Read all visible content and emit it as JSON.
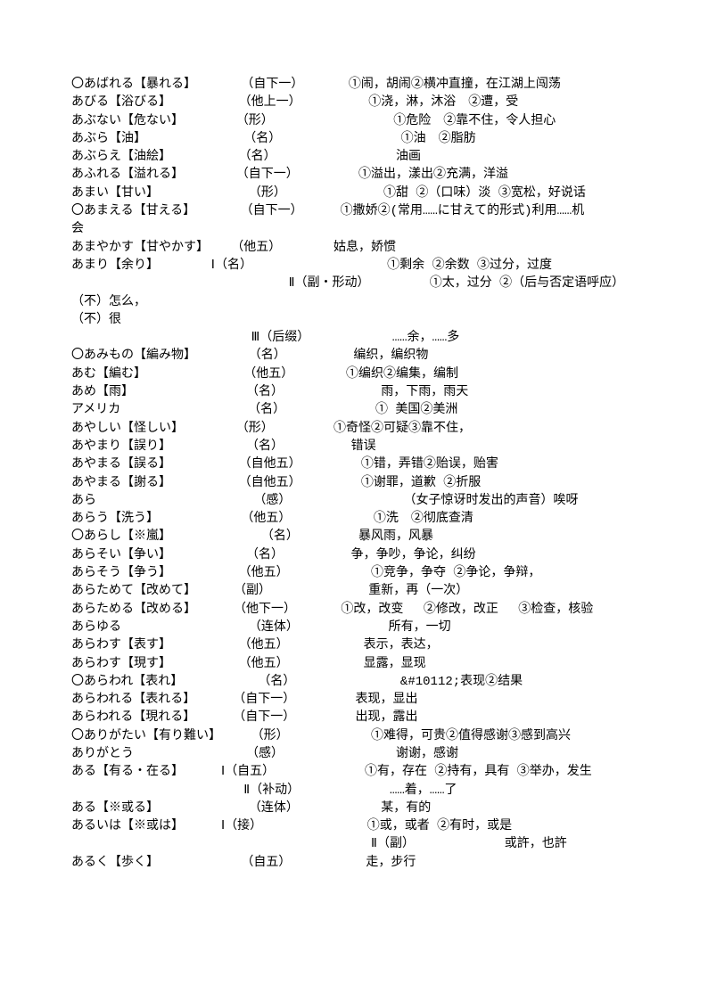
{
  "lines": [
    "〇あばれる【暴れる】      （自下一）      ①闹，胡闹②横冲直撞，在江湖上闯荡",
    "あびる【浴びる】         （他上一）         ①浇，淋，沐浴　②遭，受",
    "あぶない【危ない】       （形）                ①危险　②靠不住，令人担心",
    "あぶら【油】             （名）                ①油　②脂肪",
    "あぶらえ【油絵】         （名）                油画",
    "あふれる【溢れる】       （自下一）        ①溢出，漾出②充满，洋溢",
    "あまい【甘い】            （形）             ①甜 ②（口味）淡 ③宽松，好说话",
    "〇あまえる【甘える】      （自下一）     ①撒娇②(常用……に甘えて的形式)利用……机",
    "会",
    "あまやかす【甘やかす】   （他五）       姑息，娇惯",
    "あまり【余り】       Ⅰ（名）                  ①剩余 ②余数 ③过分，过度",
    "                             Ⅱ（副・形动）        ①太，过分 ②（后与否定语呼应）",
    "（不）怎么，",
    "（不）很",
    "                        Ⅲ（后缀）           ……余，……多",
    "〇あみもの【編み物】       （名）         编织，编织物",
    "あむ【編む】             （他五）       ①编织②编集，编制",
    "あめ【雨】               （名）             雨，下雨，雨天",
    "アメリカ                 （名）            ① 美国②美洲",
    "あやしい【怪しい】       （形）        ①奇怪②可疑③靠不住，",
    "あやまり【誤り】          （名）         错误",
    "あやまる【誤る】         （自他五）        ①错，弄错②贻误，贻害",
    "あやまる【謝る】         （自他五）        ①谢罪，道歉 ②折服",
    "あら                     （感）               （女子惊讶时发出的声音）唉呀",
    "あらう【洗う】           （他五）           ①洗　②彻底查清",
    "〇あらし【※嵐】            （名）        暴风雨，风暴",
    "あらそい【争い】          （名）         争，争吵，争论，纠纷",
    "あらそう【争う】         （他五）           ①竞争，争夺 ②争论，争辩，",
    "あらためて【改めて】     （副）             重新，再（一次）",
    "あらためる【改める】     （他下一）      ①改，改变　 ②修改，改正　 ③检查，核验",
    "あらゆる                 （连体）            所有，一切",
    "あらわす【表す】         （他五）          表示，表达，",
    "あらわす【現す】         （他五）          显露，显现",
    "〇あらわれ【表れ】          （名）              &#10112;表现②结果",
    "あらわれる【表れる】     （自下一）        表现，显出",
    "あらわれる【現れる】     （自下一）        出现，露出",
    "〇ありがたい【有り難い】    （形）           ①难得，可贵②值得感谢③感到高兴",
    "ありがとう               （感）               谢谢，感谢",
    "ある【有る・在る】     Ⅰ（自五）            ①有，存在 ②持有，具有 ③举办，发生",
    "                       Ⅱ（补动）            ……着，……了",
    "ある【※或る】            （连体）           某，有的",
    "あるいは【※或は】     Ⅰ（接）              ①或，或者 ②有时，或是",
    "                                        Ⅱ（副）            或許，也許",
    "あるく【歩く】           （自五）          走，步行"
  ]
}
